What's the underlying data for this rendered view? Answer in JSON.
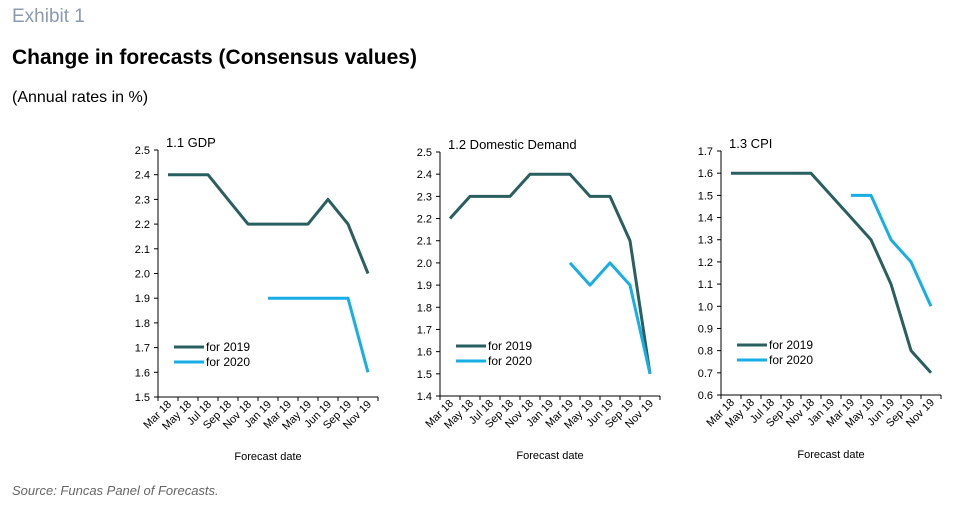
{
  "header": {
    "exhibit": "Exhibit 1",
    "title": "Change in forecasts (Consensus values)",
    "subtitle": "(Annual rates in %)"
  },
  "footer": {
    "source": "Source: Funcas Panel of Forecasts."
  },
  "colors": {
    "for_2019": "#2a5f60",
    "for_2020": "#17aee5",
    "axis": "#000000"
  },
  "chart_data": [
    {
      "type": "line",
      "title": "1.1 GDP",
      "xlabel": "Forecast date",
      "ylabel": "",
      "ylim": [
        1.5,
        2.5
      ],
      "ytick_step": 0.1,
      "ytick_decimals": 1,
      "x_ticks": [
        "Mar 18",
        "May 18",
        "Jul 18",
        "Sep 18",
        "Nov 18",
        "Jan 19",
        "Mar 19",
        "May 19",
        "Jun 19",
        "Sep 19",
        "Nov 19"
      ],
      "legend_position": "bottom-left",
      "series": [
        {
          "name": "for 2019",
          "color": "#2a5f60",
          "x": [
            "Mar 18",
            "May 18",
            "Jul 18",
            "Sep 18",
            "Nov 18",
            "Jan 19",
            "Mar 19",
            "May 19",
            "Jun 19",
            "Sep 19",
            "Nov 19"
          ],
          "values": [
            2.4,
            2.4,
            2.4,
            2.3,
            2.2,
            2.2,
            2.2,
            2.2,
            2.3,
            2.2,
            2.0
          ]
        },
        {
          "name": "for 2020",
          "color": "#17aee5",
          "x": [
            "Jan 19",
            "Mar 19",
            "May 19",
            "Jun 19",
            "Sep 19",
            "Nov 19"
          ],
          "values": [
            1.9,
            1.9,
            1.9,
            1.9,
            1.9,
            1.6
          ]
        }
      ]
    },
    {
      "type": "line",
      "title": "1.2 Domestic Demand",
      "xlabel": "Forecast date",
      "ylabel": "",
      "ylim": [
        1.4,
        2.5
      ],
      "ytick_step": 0.1,
      "ytick_decimals": 1,
      "x_ticks": [
        "Mar 18",
        "May 18",
        "Jul 18",
        "Sep 18",
        "Nov 18",
        "Jan 19",
        "Mar 19",
        "May 19",
        "Jun 19",
        "Sep 19",
        "Nov 19"
      ],
      "legend_position": "bottom-left",
      "series": [
        {
          "name": "for 2019",
          "color": "#2a5f60",
          "x": [
            "Mar 18",
            "May 18",
            "Jul 18",
            "Sep 18",
            "Nov 18",
            "Jan 19",
            "Mar 19",
            "May 19",
            "Jun 19",
            "Sep 19",
            "Nov 19"
          ],
          "values": [
            2.2,
            2.3,
            2.3,
            2.3,
            2.4,
            2.4,
            2.4,
            2.3,
            2.3,
            2.1,
            1.5
          ]
        },
        {
          "name": "for 2020",
          "color": "#17aee5",
          "x": [
            "Mar 19",
            "May 19",
            "Jun 19",
            "Sep 19",
            "Nov 19"
          ],
          "values": [
            2.0,
            1.9,
            2.0,
            1.9,
            1.5
          ]
        }
      ]
    },
    {
      "type": "line",
      "title": "1.3 CPI",
      "xlabel": "Forecast date",
      "ylabel": "",
      "ylim": [
        0.6,
        1.7
      ],
      "ytick_step": 0.1,
      "ytick_decimals": 1,
      "x_ticks": [
        "Mar 18",
        "May 18",
        "Jul 18",
        "Sep 18",
        "Nov 18",
        "Jan 19",
        "Mar 19",
        "May 19",
        "Jun 19",
        "Sep 19",
        "Nov 19"
      ],
      "legend_position": "bottom-left",
      "series": [
        {
          "name": "for 2019",
          "color": "#2a5f60",
          "x": [
            "Mar 18",
            "May 18",
            "Jul 18",
            "Sep 18",
            "Nov 18",
            "Jan 19",
            "Mar 19",
            "May 19",
            "Jun 19",
            "Sep 19",
            "Nov 19"
          ],
          "values": [
            1.6,
            1.6,
            1.6,
            1.6,
            1.6,
            1.5,
            1.4,
            1.3,
            1.1,
            0.8,
            0.7
          ]
        },
        {
          "name": "for 2020",
          "color": "#17aee5",
          "x": [
            "Mar 19",
            "May 19",
            "Jun 19",
            "Sep 19",
            "Nov 19"
          ],
          "values": [
            1.5,
            1.5,
            1.3,
            1.2,
            1.0
          ]
        }
      ]
    }
  ]
}
